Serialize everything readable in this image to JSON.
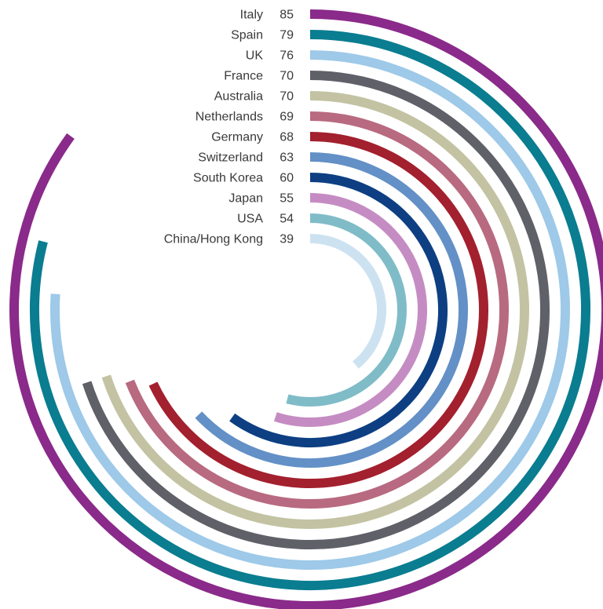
{
  "chart_data": {
    "type": "radial-bar",
    "title": "",
    "max_value": 100,
    "categories": [
      "Italy",
      "Spain",
      "UK",
      "France",
      "Australia",
      "Netherlands",
      "Germany",
      "Switzerland",
      "South Korea",
      "Japan",
      "USA",
      "China/Hong Kong"
    ],
    "values": [
      85,
      79,
      76,
      70,
      70,
      69,
      68,
      63,
      60,
      55,
      54,
      39
    ],
    "value_labels": [
      "85",
      "79",
      "76",
      "70",
      "70",
      "69",
      "68",
      "63",
      "60",
      "55",
      "54",
      "39"
    ],
    "colors": [
      "#8a2a8a",
      "#0a7d90",
      "#9ec9e8",
      "#5f6068",
      "#c3c3a3",
      "#b86a80",
      "#a3202e",
      "#6390c6",
      "#0d3f82",
      "#c58cc3",
      "#7fbcc8",
      "#cde2f1"
    ]
  }
}
